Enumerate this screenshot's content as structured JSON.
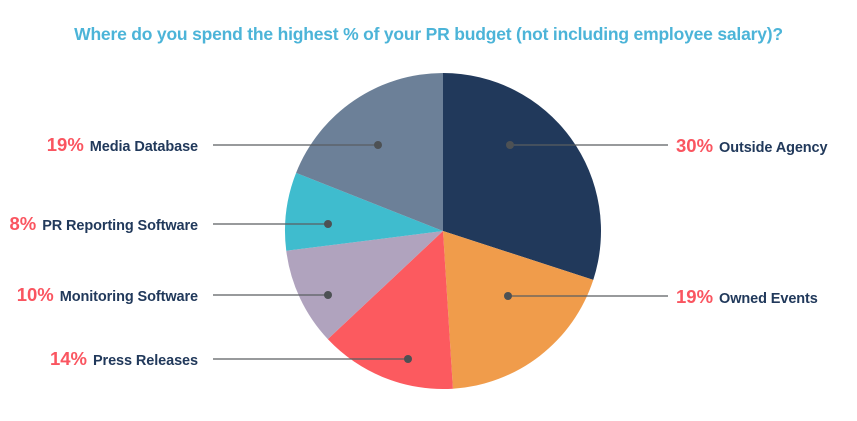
{
  "title": "Where do you spend the highest % of your PR budget (not including employee salary)?",
  "colors": {
    "title_text": "#4CB4D8",
    "percent_text": "#FA5560",
    "label_text": "#21395B",
    "connector_line": "#5A5E61",
    "connector_dot": "#4D5154",
    "background": "#FFFFFF"
  },
  "chart_data": {
    "type": "pie",
    "title": "Where do you spend the highest % of your PR budget (not including employee salary)?",
    "start_at": "12-oclock",
    "direction": "clockwise",
    "legend_position": "callout-labels",
    "slices": [
      {
        "label": "Outside Agency",
        "value": 30,
        "pct_label": "30%",
        "color": "#21395B",
        "label_side": "right"
      },
      {
        "label": "Owned Events",
        "value": 19,
        "pct_label": "19%",
        "color": "#F09C4B",
        "label_side": "right"
      },
      {
        "label": "Press Releases",
        "value": 14,
        "pct_label": "14%",
        "color": "#FC5A5F",
        "label_side": "left"
      },
      {
        "label": "Monitoring Software",
        "value": 10,
        "pct_label": "10%",
        "color": "#B0A3BE",
        "label_side": "left"
      },
      {
        "label": "PR Reporting Software",
        "value": 8,
        "pct_label": "8%",
        "color": "#3FBCCE",
        "label_side": "left"
      },
      {
        "label": "Media Database",
        "value": 19,
        "pct_label": "19%",
        "color": "#6C8098",
        "label_side": "left"
      }
    ]
  }
}
